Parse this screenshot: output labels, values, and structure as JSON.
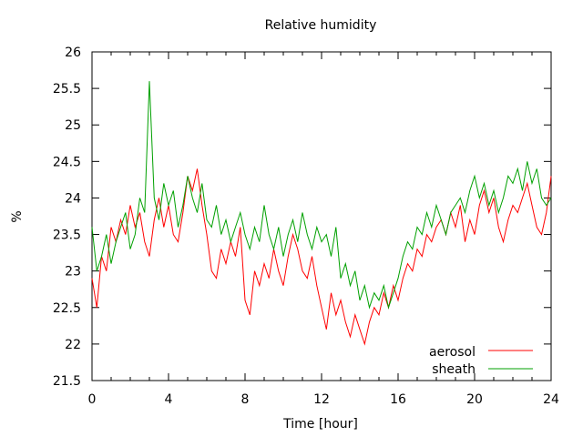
{
  "chart_data": {
    "type": "line",
    "title": "Relative humidity",
    "xlabel": "Time [hour]",
    "ylabel": "%",
    "xlim": [
      0,
      24
    ],
    "ylim": [
      21.5,
      26
    ],
    "x_ticks": [
      0,
      4,
      8,
      12,
      16,
      20,
      24
    ],
    "y_ticks": [
      21.5,
      22,
      22.5,
      23,
      23.5,
      24,
      24.5,
      25,
      25.5,
      26
    ],
    "grid": false,
    "legend_position": "bottom-right",
    "series": [
      {
        "name": "aerosol",
        "color": "#ff0000",
        "x": [
          0,
          0.25,
          0.5,
          0.75,
          1,
          1.25,
          1.5,
          1.75,
          2,
          2.25,
          2.5,
          2.75,
          3,
          3.25,
          3.5,
          3.75,
          4,
          4.25,
          4.5,
          4.75,
          5,
          5.25,
          5.5,
          5.75,
          6,
          6.25,
          6.5,
          6.75,
          7,
          7.25,
          7.5,
          7.75,
          8,
          8.25,
          8.5,
          8.75,
          9,
          9.25,
          9.5,
          9.75,
          10,
          10.25,
          10.5,
          10.75,
          11,
          11.25,
          11.5,
          11.75,
          12,
          12.25,
          12.5,
          12.75,
          13,
          13.25,
          13.5,
          13.75,
          14,
          14.25,
          14.5,
          14.75,
          15,
          15.25,
          15.5,
          15.75,
          16,
          16.25,
          16.5,
          16.75,
          17,
          17.25,
          17.5,
          17.75,
          18,
          18.25,
          18.5,
          18.75,
          19,
          19.25,
          19.5,
          19.75,
          20,
          20.25,
          20.5,
          20.75,
          21,
          21.25,
          21.5,
          21.75,
          22,
          22.25,
          22.5,
          22.75,
          23,
          23.25,
          23.5,
          23.75,
          24
        ],
        "values": [
          22.9,
          22.5,
          23.2,
          23.0,
          23.6,
          23.4,
          23.7,
          23.5,
          23.9,
          23.6,
          23.8,
          23.4,
          23.2,
          23.7,
          24.0,
          23.6,
          23.9,
          23.5,
          23.4,
          23.8,
          24.3,
          24.1,
          24.4,
          23.9,
          23.5,
          23.0,
          22.9,
          23.3,
          23.1,
          23.4,
          23.2,
          23.6,
          22.6,
          22.4,
          23.0,
          22.8,
          23.1,
          22.9,
          23.3,
          23.0,
          22.8,
          23.2,
          23.5,
          23.3,
          23.0,
          22.9,
          23.2,
          22.8,
          22.5,
          22.2,
          22.7,
          22.4,
          22.6,
          22.3,
          22.1,
          22.4,
          22.2,
          22.0,
          22.3,
          22.5,
          22.4,
          22.7,
          22.5,
          22.8,
          22.6,
          22.9,
          23.1,
          23.0,
          23.3,
          23.2,
          23.5,
          23.4,
          23.6,
          23.7,
          23.5,
          23.8,
          23.6,
          23.9,
          23.4,
          23.7,
          23.5,
          23.9,
          24.1,
          23.8,
          24.0,
          23.6,
          23.4,
          23.7,
          23.9,
          23.8,
          24.0,
          24.2,
          23.9,
          23.6,
          23.5,
          23.8,
          24.3
        ]
      },
      {
        "name": "sheath",
        "color": "#00a000",
        "x": [
          0,
          0.25,
          0.5,
          0.75,
          1,
          1.25,
          1.5,
          1.75,
          2,
          2.25,
          2.5,
          2.75,
          3,
          3.25,
          3.5,
          3.75,
          4,
          4.25,
          4.5,
          4.75,
          5,
          5.25,
          5.5,
          5.75,
          6,
          6.25,
          6.5,
          6.75,
          7,
          7.25,
          7.5,
          7.75,
          8,
          8.25,
          8.5,
          8.75,
          9,
          9.25,
          9.5,
          9.75,
          10,
          10.25,
          10.5,
          10.75,
          11,
          11.25,
          11.5,
          11.75,
          12,
          12.25,
          12.5,
          12.75,
          13,
          13.25,
          13.5,
          13.75,
          14,
          14.25,
          14.5,
          14.75,
          15,
          15.25,
          15.5,
          15.75,
          16,
          16.25,
          16.5,
          16.75,
          17,
          17.25,
          17.5,
          17.75,
          18,
          18.25,
          18.5,
          18.75,
          19,
          19.25,
          19.5,
          19.75,
          20,
          20.25,
          20.5,
          20.75,
          21,
          21.25,
          21.5,
          21.75,
          22,
          22.25,
          22.5,
          22.75,
          23,
          23.25,
          23.5,
          23.75,
          24
        ],
        "values": [
          23.6,
          23.0,
          23.2,
          23.5,
          23.1,
          23.4,
          23.6,
          23.8,
          23.3,
          23.5,
          24.0,
          23.8,
          25.6,
          24.0,
          23.7,
          24.2,
          23.9,
          24.1,
          23.6,
          23.9,
          24.3,
          24.0,
          23.8,
          24.2,
          23.7,
          23.6,
          23.9,
          23.5,
          23.7,
          23.4,
          23.6,
          23.8,
          23.5,
          23.3,
          23.6,
          23.4,
          23.9,
          23.5,
          23.3,
          23.6,
          23.2,
          23.5,
          23.7,
          23.4,
          23.8,
          23.5,
          23.3,
          23.6,
          23.4,
          23.5,
          23.2,
          23.6,
          22.9,
          23.1,
          22.8,
          23.0,
          22.6,
          22.8,
          22.5,
          22.7,
          22.6,
          22.8,
          22.5,
          22.7,
          22.9,
          23.2,
          23.4,
          23.3,
          23.6,
          23.5,
          23.8,
          23.6,
          23.9,
          23.7,
          23.5,
          23.8,
          23.9,
          24.0,
          23.8,
          24.1,
          24.3,
          24.0,
          24.2,
          23.9,
          24.1,
          23.8,
          24.0,
          24.3,
          24.2,
          24.4,
          24.1,
          24.5,
          24.2,
          24.4,
          24.0,
          23.9,
          24.0
        ]
      }
    ]
  }
}
